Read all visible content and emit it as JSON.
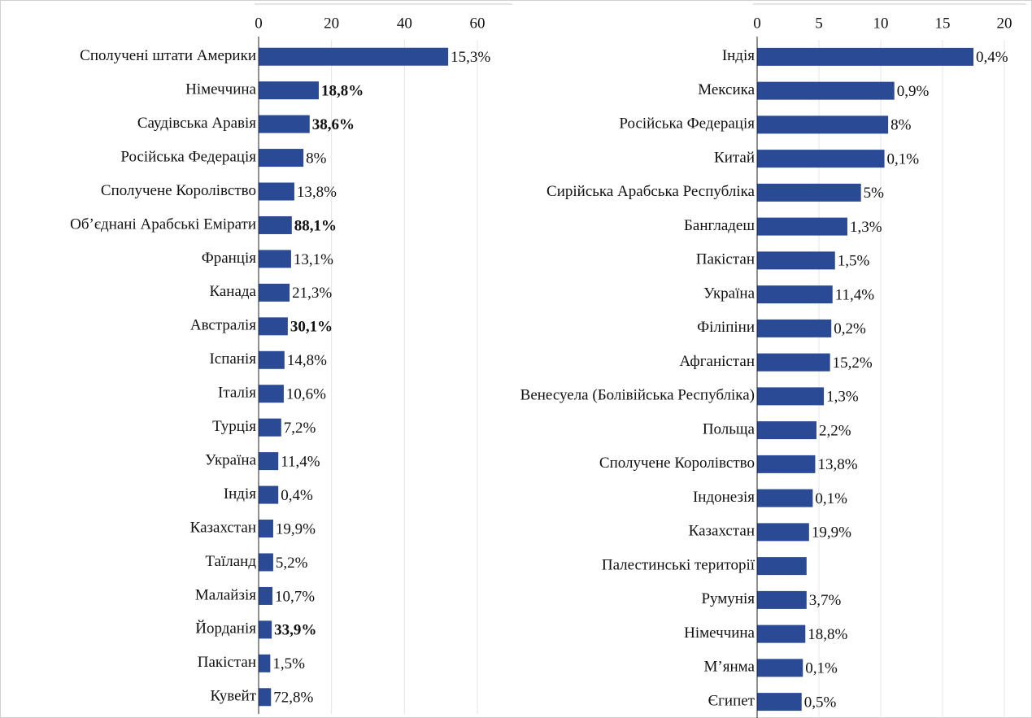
{
  "chart_data": [
    {
      "type": "bar",
      "orientation": "horizontal",
      "color": "#2a4a96",
      "categories": [
        "Сполучені штати Америки",
        "Німеччина",
        "Саудівська Аравія",
        "Російська Федерація",
        "Сполучене Королівство",
        "Об’єднані Арабські Емірати",
        "Франція",
        "Канада",
        "Австралія",
        "Іспанія",
        "Італія",
        "Турція",
        "Україна",
        "Індія",
        "Казахстан",
        "Таїланд",
        "Малайзія",
        "Йорданія",
        "Пакістан",
        "Кувейт"
      ],
      "values": [
        52,
        16.5,
        14,
        12.3,
        9.8,
        9.1,
        8.9,
        8.5,
        8,
        7.1,
        6.9,
        6.2,
        5.4,
        5.4,
        4,
        4,
        3.8,
        3.6,
        3.2,
        3.4
      ],
      "labels": [
        "15,3%",
        "18,8%",
        "38,6%",
        "8%",
        "13,8%",
        "88,1%",
        "13,1%",
        "21,3%",
        "30,1%",
        "14,8%",
        "10,6%",
        "7,2%",
        "11,4%",
        "0,4%",
        "19,9%",
        "5,2%",
        "10,7%",
        "33,9%",
        "1,5%",
        "72,8%"
      ],
      "bold_labels": [
        false,
        true,
        true,
        false,
        false,
        true,
        false,
        false,
        true,
        false,
        false,
        false,
        false,
        false,
        false,
        false,
        false,
        true,
        false,
        false
      ],
      "xlim": [
        0,
        60
      ],
      "xticks": [
        0,
        20,
        40,
        60
      ],
      "grid": true
    },
    {
      "type": "bar",
      "orientation": "horizontal",
      "color": "#2a4a96",
      "categories": [
        "Індія",
        "Мексика",
        "Російська Федерація",
        "Китай",
        "Сирійська Арабська Республіка",
        "Бангладеш",
        "Пакістан",
        "Україна",
        "Філіпіни",
        "Афганістан",
        "Венесуела (Болівійська  Республіка)",
        "Польща",
        "Сполучене Королівство",
        "Індонезія",
        "Казахстан",
        "Палестинські території",
        "Румунія",
        "Німеччина",
        "М’янма",
        "Єгипет"
      ],
      "values": [
        17.5,
        11.1,
        10.6,
        10.3,
        8.4,
        7.3,
        6.3,
        6.1,
        6,
        5.9,
        5.4,
        4.8,
        4.7,
        4.5,
        4.2,
        4,
        4,
        3.9,
        3.7,
        3.6
      ],
      "labels": [
        "0,4%",
        "0,9%",
        "8%",
        "0,1%",
        "5%",
        "1,3%",
        "1,5%",
        "11,4%",
        "0,2%",
        "15,2%",
        "1,3%",
        "2,2%",
        "13,8%",
        "0,1%",
        "19,9%",
        null,
        "3,7%",
        "18,8%",
        "0,1%",
        "0,5%"
      ],
      "bold_labels": [
        false,
        false,
        false,
        false,
        false,
        false,
        false,
        false,
        false,
        false,
        false,
        false,
        false,
        false,
        false,
        false,
        false,
        false,
        false,
        false
      ],
      "xlim": [
        0,
        20
      ],
      "xticks": [
        0,
        5,
        10,
        15,
        20
      ],
      "grid": true
    }
  ]
}
